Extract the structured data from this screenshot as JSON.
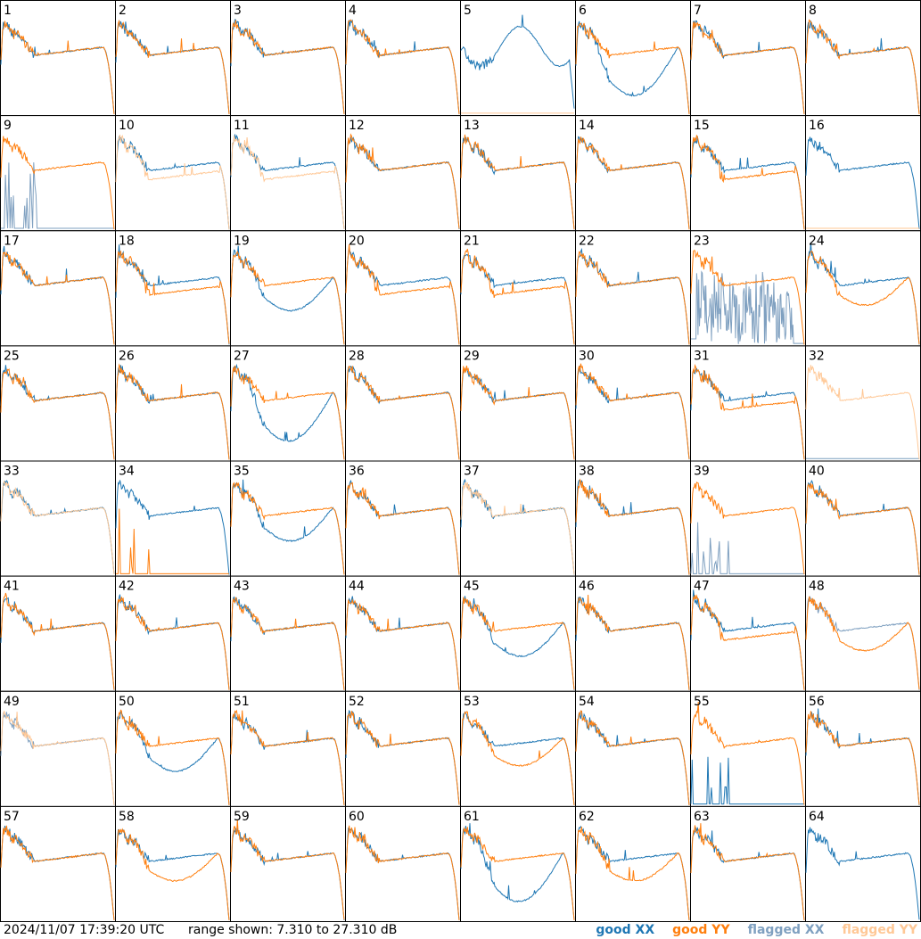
{
  "footer": {
    "timestamp": "2024/11/07 17:39:20 UTC",
    "range_text": "range shown: 7.310 to 27.310 dB"
  },
  "legend": [
    {
      "label": "good XX",
      "color": "#1f77b4"
    },
    {
      "label": "good YY",
      "color": "#ff7f0e"
    },
    {
      "label": "flagged XX",
      "color": "#7fa0c0"
    },
    {
      "label": "flagged YY",
      "color": "#ffc896"
    }
  ],
  "chart_data": {
    "type": "line",
    "title": "",
    "xlabel": "",
    "ylabel": "",
    "ylim": [
      7.31,
      27.31
    ],
    "grid": false,
    "legend_position": "bottom-right",
    "layout": "8x8 small multiples",
    "series_names": [
      "good XX",
      "good YY",
      "flagged XX",
      "flagged YY"
    ],
    "panels": [
      {
        "id": "1",
        "xx": "good",
        "yy": "good",
        "shape": "standard"
      },
      {
        "id": "2",
        "xx": "good",
        "yy": "good",
        "shape": "standard"
      },
      {
        "id": "3",
        "xx": "good",
        "yy": "good",
        "shape": "standard"
      },
      {
        "id": "4",
        "xx": "good",
        "yy": "good",
        "shape": "standard"
      },
      {
        "id": "5",
        "xx": "good",
        "yy": "flagged",
        "shape": "xx-wave-yy-dead"
      },
      {
        "id": "6",
        "xx": "good",
        "yy": "good",
        "shape": "xx-deep-dip"
      },
      {
        "id": "7",
        "xx": "good",
        "yy": "good",
        "shape": "standard"
      },
      {
        "id": "8",
        "xx": "good",
        "yy": "good",
        "shape": "standard"
      },
      {
        "id": "9",
        "xx": "flagged",
        "yy": "good",
        "shape": "xx-dead"
      },
      {
        "id": "10",
        "xx": "good",
        "yy": "flagged",
        "shape": "yy-flagged-low"
      },
      {
        "id": "11",
        "xx": "good",
        "yy": "flagged",
        "shape": "yy-flagged-low"
      },
      {
        "id": "12",
        "xx": "good",
        "yy": "good",
        "shape": "standard"
      },
      {
        "id": "13",
        "xx": "good",
        "yy": "good",
        "shape": "standard"
      },
      {
        "id": "14",
        "xx": "good",
        "yy": "good",
        "shape": "standard"
      },
      {
        "id": "15",
        "xx": "good",
        "yy": "good",
        "shape": "split"
      },
      {
        "id": "16",
        "xx": "good",
        "yy": "flagged",
        "shape": "yy-dead"
      },
      {
        "id": "17",
        "xx": "good",
        "yy": "good",
        "shape": "standard"
      },
      {
        "id": "18",
        "xx": "good",
        "yy": "good",
        "shape": "split"
      },
      {
        "id": "19",
        "xx": "good",
        "yy": "good",
        "shape": "xx-dip"
      },
      {
        "id": "20",
        "xx": "good",
        "yy": "good",
        "shape": "split"
      },
      {
        "id": "21",
        "xx": "good",
        "yy": "good",
        "shape": "split"
      },
      {
        "id": "22",
        "xx": "good",
        "yy": "good",
        "shape": "standard"
      },
      {
        "id": "23",
        "xx": "flagged",
        "yy": "good",
        "shape": "xx-noise"
      },
      {
        "id": "24",
        "xx": "good",
        "yy": "good",
        "shape": "yy-dip"
      },
      {
        "id": "25",
        "xx": "good",
        "yy": "good",
        "shape": "standard"
      },
      {
        "id": "26",
        "xx": "good",
        "yy": "good",
        "shape": "standard"
      },
      {
        "id": "27",
        "xx": "good",
        "yy": "good",
        "shape": "xx-deep-dip"
      },
      {
        "id": "28",
        "xx": "good",
        "yy": "good",
        "shape": "standard"
      },
      {
        "id": "29",
        "xx": "good",
        "yy": "good",
        "shape": "standard"
      },
      {
        "id": "30",
        "xx": "good",
        "yy": "good",
        "shape": "standard"
      },
      {
        "id": "31",
        "xx": "good",
        "yy": "good",
        "shape": "split"
      },
      {
        "id": "32",
        "xx": "flagged",
        "yy": "flagged",
        "shape": "yy-only-flagged"
      },
      {
        "id": "33",
        "xx": "good",
        "yy": "flagged",
        "shape": "standard"
      },
      {
        "id": "34",
        "xx": "good",
        "yy": "good",
        "shape": "yy-dead-noise"
      },
      {
        "id": "35",
        "xx": "good",
        "yy": "good",
        "shape": "xx-dip"
      },
      {
        "id": "36",
        "xx": "good",
        "yy": "good",
        "shape": "standard"
      },
      {
        "id": "37",
        "xx": "good",
        "yy": "flagged",
        "shape": "standard"
      },
      {
        "id": "38",
        "xx": "good",
        "yy": "good",
        "shape": "standard"
      },
      {
        "id": "39",
        "xx": "flagged",
        "yy": "good",
        "shape": "xx-dead"
      },
      {
        "id": "40",
        "xx": "good",
        "yy": "good",
        "shape": "standard"
      },
      {
        "id": "41",
        "xx": "good",
        "yy": "good",
        "shape": "standard"
      },
      {
        "id": "42",
        "xx": "good",
        "yy": "good",
        "shape": "standard"
      },
      {
        "id": "43",
        "xx": "good",
        "yy": "good",
        "shape": "standard"
      },
      {
        "id": "44",
        "xx": "good",
        "yy": "good",
        "shape": "standard"
      },
      {
        "id": "45",
        "xx": "good",
        "yy": "good",
        "shape": "xx-dip"
      },
      {
        "id": "46",
        "xx": "good",
        "yy": "good",
        "shape": "standard"
      },
      {
        "id": "47",
        "xx": "good",
        "yy": "good",
        "shape": "split"
      },
      {
        "id": "48",
        "xx": "flagged",
        "yy": "good",
        "shape": "yy-dip"
      },
      {
        "id": "49",
        "xx": "flagged",
        "yy": "flagged",
        "shape": "standard"
      },
      {
        "id": "50",
        "xx": "good",
        "yy": "good",
        "shape": "xx-dip"
      },
      {
        "id": "51",
        "xx": "good",
        "yy": "good",
        "shape": "standard"
      },
      {
        "id": "52",
        "xx": "good",
        "yy": "good",
        "shape": "standard"
      },
      {
        "id": "53",
        "xx": "good",
        "yy": "good",
        "shape": "yy-dip"
      },
      {
        "id": "54",
        "xx": "good",
        "yy": "good",
        "shape": "standard"
      },
      {
        "id": "55",
        "xx": "good",
        "yy": "good",
        "shape": "xx-dead-noise"
      },
      {
        "id": "56",
        "xx": "good",
        "yy": "good",
        "shape": "standard"
      },
      {
        "id": "57",
        "xx": "good",
        "yy": "good",
        "shape": "standard"
      },
      {
        "id": "58",
        "xx": "good",
        "yy": "good",
        "shape": "yy-dip"
      },
      {
        "id": "59",
        "xx": "good",
        "yy": "good",
        "shape": "standard"
      },
      {
        "id": "60",
        "xx": "good",
        "yy": "good",
        "shape": "standard"
      },
      {
        "id": "61",
        "xx": "good",
        "yy": "good",
        "shape": "xx-deep-dip"
      },
      {
        "id": "62",
        "xx": "good",
        "yy": "good",
        "shape": "yy-dip"
      },
      {
        "id": "63",
        "xx": "good",
        "yy": "good",
        "shape": "standard"
      },
      {
        "id": "64",
        "xx": "good",
        "yy": "none",
        "shape": "xx-only"
      }
    ]
  }
}
